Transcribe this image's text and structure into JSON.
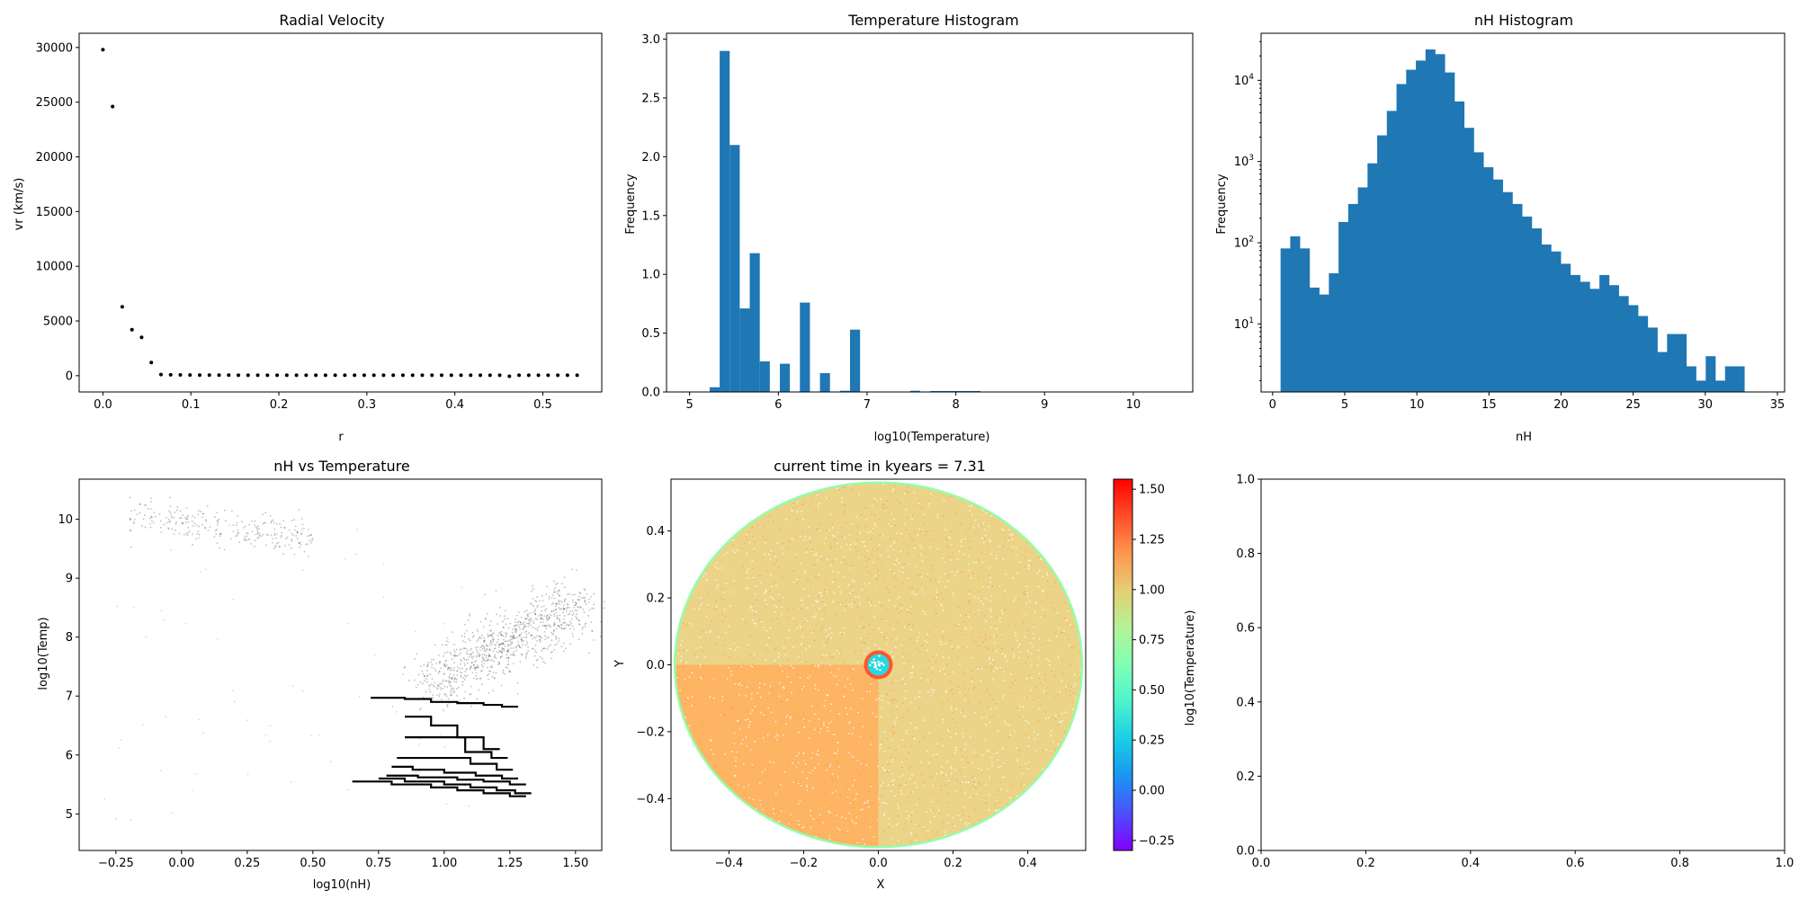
{
  "chart_data": [
    {
      "id": "radial_velocity",
      "type": "scatter",
      "title": "Radial Velocity",
      "xlabel": "r",
      "ylabel": "vr (km/s)",
      "xlim": [
        -0.027,
        0.567
      ],
      "ylim": [
        -1490,
        31300
      ],
      "xticks": [
        0.0,
        0.1,
        0.2,
        0.3,
        0.4,
        0.5
      ],
      "yticks": [
        0,
        5000,
        10000,
        15000,
        20000,
        25000,
        30000
      ],
      "x": [
        0.0,
        0.011,
        0.022,
        0.033,
        0.044,
        0.055,
        0.066,
        0.077,
        0.088,
        0.099,
        0.11,
        0.121,
        0.132,
        0.143,
        0.154,
        0.165,
        0.176,
        0.187,
        0.198,
        0.209,
        0.22,
        0.231,
        0.242,
        0.253,
        0.264,
        0.275,
        0.286,
        0.297,
        0.308,
        0.319,
        0.33,
        0.341,
        0.352,
        0.363,
        0.374,
        0.385,
        0.396,
        0.407,
        0.418,
        0.429,
        0.44,
        0.451,
        0.462,
        0.473,
        0.484,
        0.495,
        0.506,
        0.517,
        0.528,
        0.539
      ],
      "y": [
        29800,
        24600,
        6300,
        4200,
        3500,
        1200,
        100,
        80,
        70,
        60,
        50,
        50,
        50,
        50,
        40,
        40,
        40,
        40,
        40,
        40,
        40,
        40,
        40,
        40,
        40,
        40,
        40,
        40,
        40,
        40,
        40,
        40,
        40,
        40,
        40,
        40,
        40,
        40,
        40,
        40,
        40,
        40,
        -50,
        40,
        40,
        40,
        40,
        40,
        40,
        40
      ]
    },
    {
      "id": "temperature_histogram",
      "type": "bar",
      "title": "Temperature Histogram",
      "xlabel": "log10(Temperature)",
      "ylabel": "Frequency",
      "xlim": [
        4.74,
        10.67
      ],
      "ylim": [
        0,
        3.05
      ],
      "xticks": [
        5,
        6,
        7,
        8,
        9,
        10
      ],
      "yticks": [
        0.0,
        0.5,
        1.0,
        1.5,
        2.0,
        2.5,
        3.0
      ],
      "bin_start": 5.0,
      "bin_width": 0.113,
      "values": [
        0,
        0,
        0.04,
        2.9,
        2.1,
        0.71,
        1.18,
        0.26,
        0,
        0.24,
        0,
        0.76,
        0,
        0.16,
        0,
        0.01,
        0.53,
        0,
        0,
        0,
        0,
        0,
        0.01,
        0,
        0.008,
        0.008,
        0.008,
        0.008,
        0.008,
        0,
        0,
        0,
        0,
        0,
        0,
        0,
        0,
        0,
        0,
        0,
        0,
        0,
        0,
        0,
        0,
        0,
        0,
        0,
        0,
        0
      ]
    },
    {
      "id": "nh_histogram",
      "type": "bar",
      "title": "nH Histogram",
      "xlabel": "nH",
      "ylabel": "Frequency",
      "yscale": "log",
      "xlim": [
        -0.8,
        35.5
      ],
      "ylim": [
        1.45,
        38000
      ],
      "xticks": [
        0,
        5,
        10,
        15,
        20,
        25,
        30,
        35
      ],
      "yticks": [
        "10^1",
        "10^2",
        "10^3",
        "10^4"
      ],
      "bin_start": 0.55,
      "bin_width": 0.67,
      "values": [
        85,
        120,
        85,
        28,
        23,
        42,
        180,
        300,
        480,
        950,
        2100,
        4200,
        9000,
        13500,
        17500,
        24000,
        21000,
        12500,
        5500,
        2600,
        1300,
        850,
        600,
        420,
        300,
        210,
        150,
        95,
        78,
        55,
        40,
        33,
        27,
        40,
        30,
        22,
        17,
        12.5,
        9,
        4.5,
        7.5,
        7.5,
        3,
        2,
        4,
        2,
        3,
        3
      ]
    },
    {
      "id": "nh_vs_temperature",
      "type": "scatter",
      "title": "nH vs Temperature",
      "xlabel": "log10(nH)",
      "ylabel": "log10(Temp)",
      "xlim": [
        -0.39,
        1.6
      ],
      "ylim": [
        4.38,
        10.68
      ],
      "xticks": [
        -0.25,
        0.0,
        0.25,
        0.5,
        0.75,
        1.0,
        1.25,
        1.5
      ],
      "yticks": [
        5,
        6,
        7,
        8,
        9,
        10
      ],
      "steps": [
        {
          "x": [
            0.65,
            0.8,
            0.95,
            1.05,
            1.15,
            1.25
          ],
          "y": [
            5.55,
            5.5,
            5.45,
            5.4,
            5.35,
            5.3
          ]
        },
        {
          "x": [
            0.75,
            0.85,
            1.0,
            1.1,
            1.2,
            1.27
          ],
          "y": [
            5.6,
            5.55,
            5.5,
            5.45,
            5.4,
            5.35
          ]
        },
        {
          "x": [
            0.78,
            0.9,
            1.05,
            1.15,
            1.25
          ],
          "y": [
            5.65,
            5.62,
            5.58,
            5.55,
            5.5
          ]
        },
        {
          "x": [
            0.8,
            0.88,
            1.0,
            1.12,
            1.22
          ],
          "y": [
            5.8,
            5.75,
            5.7,
            5.65,
            5.6
          ]
        },
        {
          "x": [
            0.82,
            0.95,
            1.1,
            1.2
          ],
          "y": [
            5.95,
            5.95,
            5.85,
            5.75
          ]
        },
        {
          "x": [
            0.85,
            0.97,
            1.08,
            1.18
          ],
          "y": [
            6.3,
            6.3,
            6.05,
            5.95
          ]
        },
        {
          "x": [
            0.85,
            0.95,
            1.05,
            1.15
          ],
          "y": [
            6.65,
            6.5,
            6.3,
            6.1
          ]
        },
        {
          "x": [
            0.72,
            0.85,
            0.95,
            1.05,
            1.15,
            1.22
          ],
          "y": [
            6.97,
            6.95,
            6.9,
            6.88,
            6.85,
            6.82
          ]
        }
      ]
    },
    {
      "id": "xy_temperature_map",
      "type": "scatter",
      "title": "current time in kyears = 7.31",
      "xlabel": "X",
      "ylabel": "Y",
      "xlim": [
        -0.555,
        0.555
      ],
      "ylim": [
        -0.555,
        0.555
      ],
      "xticks": [
        -0.4,
        -0.2,
        0.0,
        0.2,
        0.4
      ],
      "yticks": [
        -0.4,
        -0.2,
        0.0,
        0.2,
        0.4
      ],
      "radius": 0.545,
      "colorbar": {
        "label": "log10(Temperature)",
        "colormap": "rainbow",
        "min": -0.3,
        "max": 1.55,
        "ticks": [
          -0.25,
          0.0,
          0.25,
          0.5,
          0.75,
          1.0,
          1.25,
          1.5
        ],
        "tick_labels": [
          "−0.25",
          "0.00",
          "0.25",
          "0.50",
          "0.75",
          "1.00",
          "1.25",
          "1.50"
        ]
      },
      "regions": [
        {
          "name": "bulk",
          "value": 1.0
        },
        {
          "name": "lower-left quadrant",
          "value": 1.1
        },
        {
          "name": "outer rim",
          "value": 0.7
        },
        {
          "name": "central ring",
          "value": 1.35
        },
        {
          "name": "core",
          "value": 0.3
        }
      ]
    },
    {
      "id": "empty_axes",
      "type": "scatter",
      "title": "",
      "xlim": [
        0,
        1
      ],
      "ylim": [
        0,
        1
      ],
      "xticks": [
        0.0,
        0.2,
        0.4,
        0.6,
        0.8,
        1.0
      ],
      "yticks": [
        0.0,
        0.2,
        0.4,
        0.6,
        0.8,
        1.0
      ]
    }
  ],
  "colors": {
    "bar_fill": "#1f77b4",
    "marker": "#000000"
  }
}
